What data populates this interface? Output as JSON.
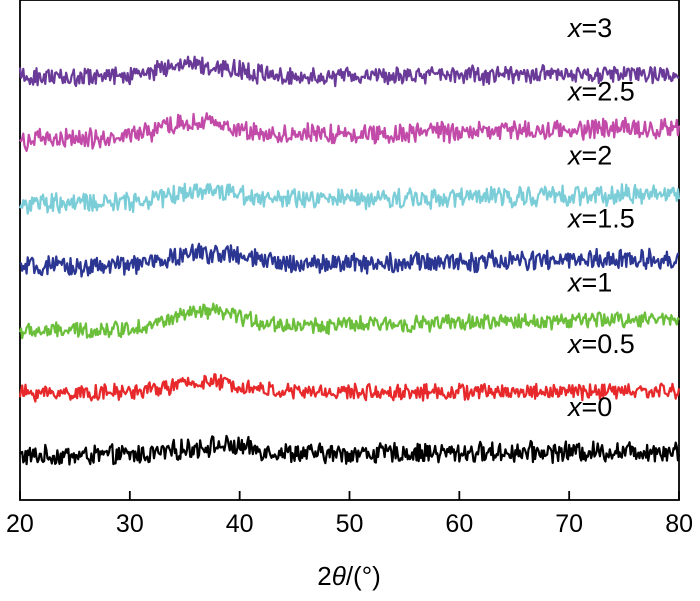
{
  "chart_data": {
    "type": "line",
    "title": "",
    "xlabel_parts": [
      "2",
      "θ",
      "/(°)"
    ],
    "ylabel": "",
    "xlim": [
      20,
      80
    ],
    "xticks": [
      20,
      30,
      40,
      50,
      60,
      70,
      80
    ],
    "y_axis_ticks": false,
    "grid": false,
    "legend": "none",
    "series": [
      {
        "label_var": "x",
        "label_value": "=0",
        "color": "#000000",
        "baseline": 0.2,
        "hump_center": 38,
        "hump_amp": 0.1,
        "noise": 0.1,
        "rise": 0.06
      },
      {
        "label_var": "x",
        "label_value": "=0.5",
        "color": "#e8292b",
        "baseline": 0.92,
        "hump_center": 37,
        "hump_amp": 0.12,
        "noise": 0.08,
        "rise": 0.02
      },
      {
        "label_var": "x",
        "label_value": "=1",
        "color": "#6bbf3b",
        "baseline": 1.62,
        "hump_center": 37,
        "hump_amp": 0.18,
        "noise": 0.08,
        "rise": 0.15
      },
      {
        "label_var": "x",
        "label_value": "=1.5",
        "color": "#2b3592",
        "baseline": 2.35,
        "hump_center": 37,
        "hump_amp": 0.14,
        "noise": 0.1,
        "rise": 0.1
      },
      {
        "label_var": "x",
        "label_value": "=2",
        "color": "#7bcdd8",
        "baseline": 3.07,
        "hump_center": 37,
        "hump_amp": 0.13,
        "noise": 0.1,
        "rise": 0.12
      },
      {
        "label_var": "x",
        "label_value": "=2.5",
        "color": "#c24aa8",
        "baseline": 3.8,
        "hump_center": 36,
        "hump_amp": 0.16,
        "noise": 0.1,
        "rise": 0.15
      },
      {
        "label_var": "x",
        "label_value": "=3",
        "color": "#6a3a98",
        "baseline": 4.52,
        "hump_center": 36,
        "hump_amp": 0.14,
        "noise": 0.09,
        "rise": 0.03
      }
    ]
  }
}
